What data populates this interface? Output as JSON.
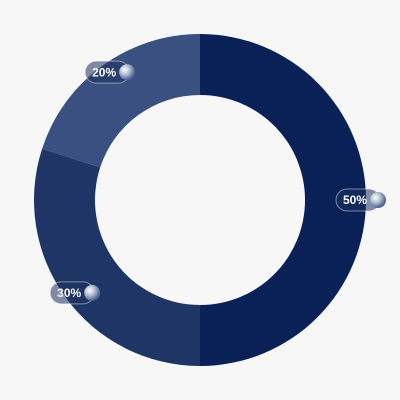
{
  "chart_data": {
    "type": "donut",
    "values": [
      50,
      30,
      20
    ],
    "value_labels": [
      "50%",
      "30%",
      "20%"
    ],
    "colors": [
      "#0a2157",
      "#1f3566",
      "#3a5080"
    ]
  }
}
